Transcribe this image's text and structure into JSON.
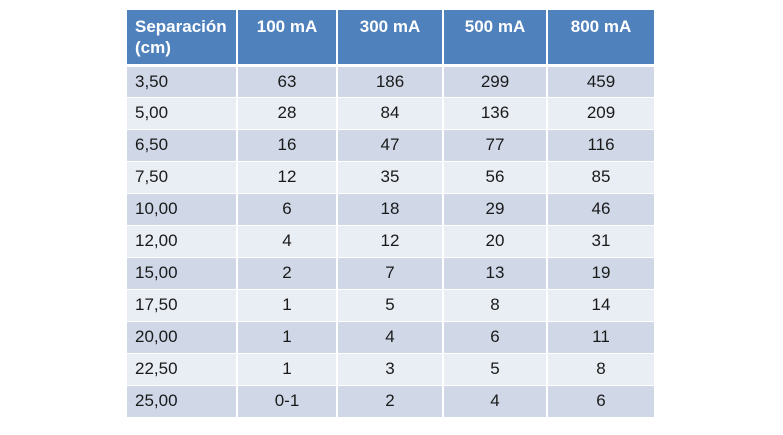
{
  "table": {
    "headers": [
      "Separación (cm)",
      "100 mA",
      "300 mA",
      "500 mA",
      "800 mA"
    ],
    "rows": [
      [
        "3,50",
        "63",
        "186",
        "299",
        "459"
      ],
      [
        "5,00",
        "28",
        "84",
        "136",
        "209"
      ],
      [
        "6,50",
        "16",
        "47",
        "77",
        "116"
      ],
      [
        "7,50",
        "12",
        "35",
        "56",
        "85"
      ],
      [
        "10,00",
        "6",
        "18",
        "29",
        "46"
      ],
      [
        "12,00",
        "4",
        "12",
        "20",
        "31"
      ],
      [
        "15,00",
        "2",
        "7",
        "13",
        "19"
      ],
      [
        "17,50",
        "1",
        "5",
        "8",
        "14"
      ],
      [
        "20,00",
        "1",
        "4",
        "6",
        "11"
      ],
      [
        "22,50",
        "1",
        "3",
        "5",
        "8"
      ],
      [
        "25,00",
        "0-1",
        "2",
        "4",
        "6"
      ]
    ]
  },
  "colors": {
    "header_bg": "#4f81bd",
    "row_odd_bg": "#d0d8e8",
    "row_even_bg": "#e9edf4"
  }
}
